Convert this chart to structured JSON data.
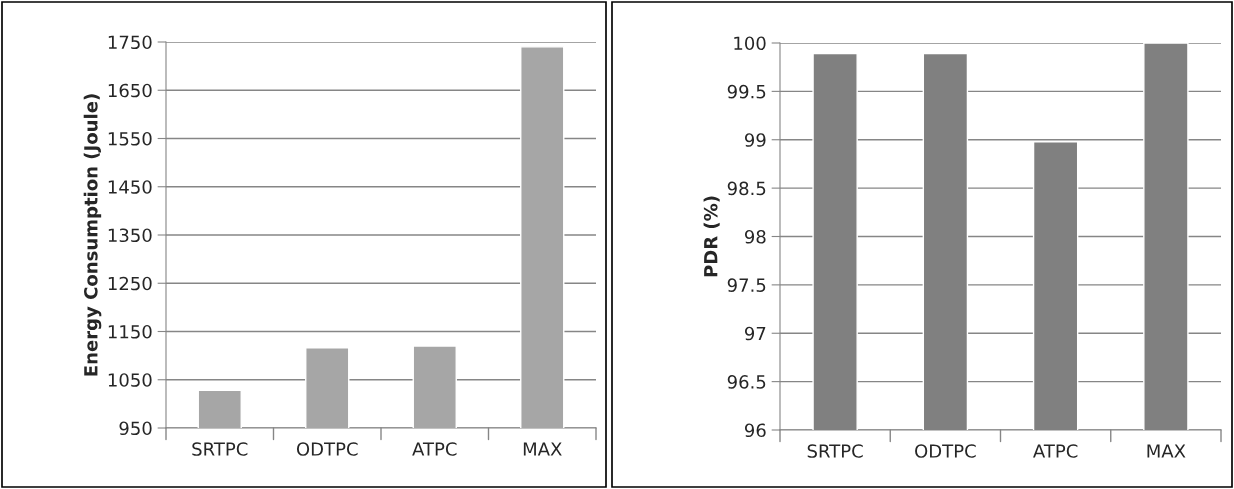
{
  "chart_data": [
    {
      "type": "bar",
      "ylabel": "Energy Consumption (Joule)",
      "categories": [
        "SRTPC",
        "ODTPC",
        "ATPC",
        "MAX"
      ],
      "values": [
        1028,
        1116,
        1120,
        1740
      ],
      "color": "#a6a6a6",
      "ylim": [
        950,
        1750
      ],
      "yticks": [
        950,
        1050,
        1150,
        1250,
        1350,
        1450,
        1550,
        1650,
        1750
      ],
      "grid": "y",
      "legend": false
    },
    {
      "type": "bar",
      "ylabel": "PDR (%)",
      "categories": [
        "SRTPC",
        "ODTPC",
        "ATPC",
        "MAX"
      ],
      "values": [
        99.89,
        99.89,
        98.98,
        100
      ],
      "color": "#808080",
      "ylim": [
        96,
        100
      ],
      "yticks": [
        96,
        96.5,
        97,
        97.5,
        98,
        98.5,
        99,
        99.5,
        100
      ],
      "grid": "y",
      "legend": false
    }
  ]
}
